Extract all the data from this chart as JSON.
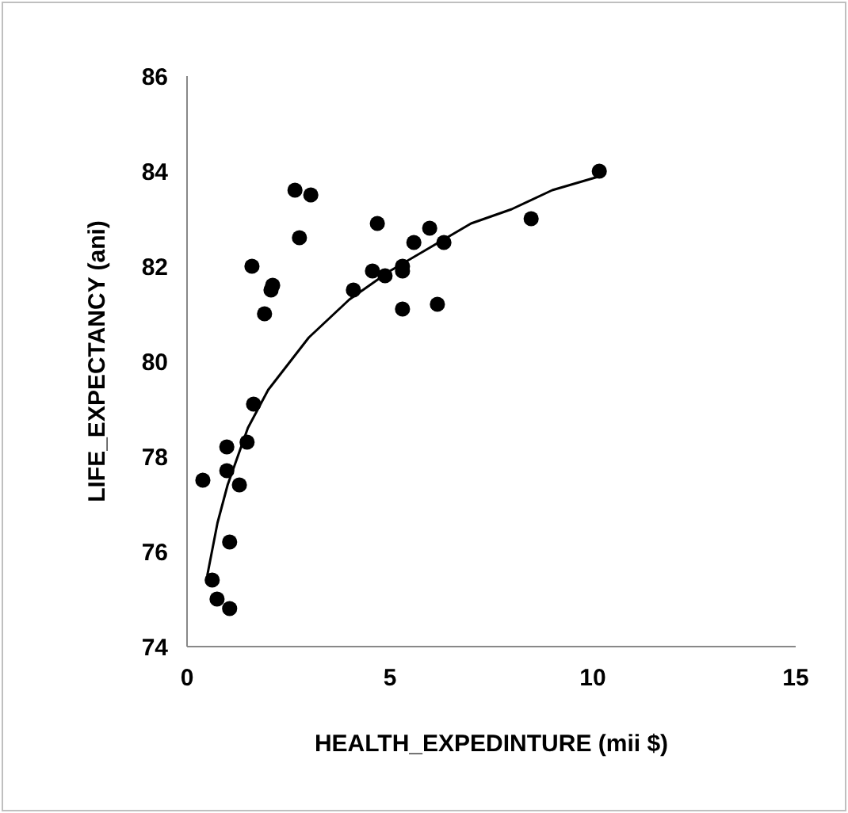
{
  "chart_data": {
    "type": "scatter",
    "xlabel": "HEALTH_EXPEDINTURE (mii $)",
    "ylabel": "LIFE_EXPECTANCY (ani)",
    "xlim": [
      0,
      15
    ],
    "xticks": [
      0,
      5,
      10,
      15
    ],
    "ylim": [
      74,
      86
    ],
    "yticks": [
      74,
      76,
      78,
      80,
      82,
      84,
      86
    ],
    "grid": false,
    "series": [
      {
        "color": "#000000",
        "marker": "circle",
        "x": [
          2.66,
          3.05,
          2.77,
          1.6,
          2.11,
          2.07,
          4.1,
          1.91,
          1.64,
          1.48,
          0.98,
          0.98,
          0.39,
          1.29,
          1.05,
          0.62,
          0.74,
          1.05,
          10.16,
          4.69,
          5.98,
          8.48,
          5.59,
          6.33,
          4.57,
          4.88,
          5.31,
          5.31,
          5.31,
          6.17
        ],
        "values": [
          83.6,
          83.5,
          82.6,
          82.0,
          81.6,
          81.5,
          81.5,
          81.0,
          79.1,
          78.3,
          78.2,
          77.7,
          77.5,
          77.4,
          76.2,
          75.4,
          75.0,
          74.8,
          84.0,
          82.9,
          82.8,
          83.0,
          82.5,
          82.5,
          81.9,
          81.8,
          82.0,
          81.9,
          81.1,
          81.2
        ]
      },
      {
        "type": "line",
        "color": "#000000",
        "marker": "none",
        "line_style": "solid",
        "x": [
          0.5,
          0.75,
          1,
          1.5,
          2,
          3,
          4,
          5,
          6,
          7,
          8,
          9,
          10.2
        ],
        "values": [
          75.5,
          76.6,
          77.4,
          78.6,
          79.4,
          80.5,
          81.3,
          81.9,
          82.4,
          82.9,
          83.2,
          83.6,
          83.9
        ]
      }
    ]
  }
}
